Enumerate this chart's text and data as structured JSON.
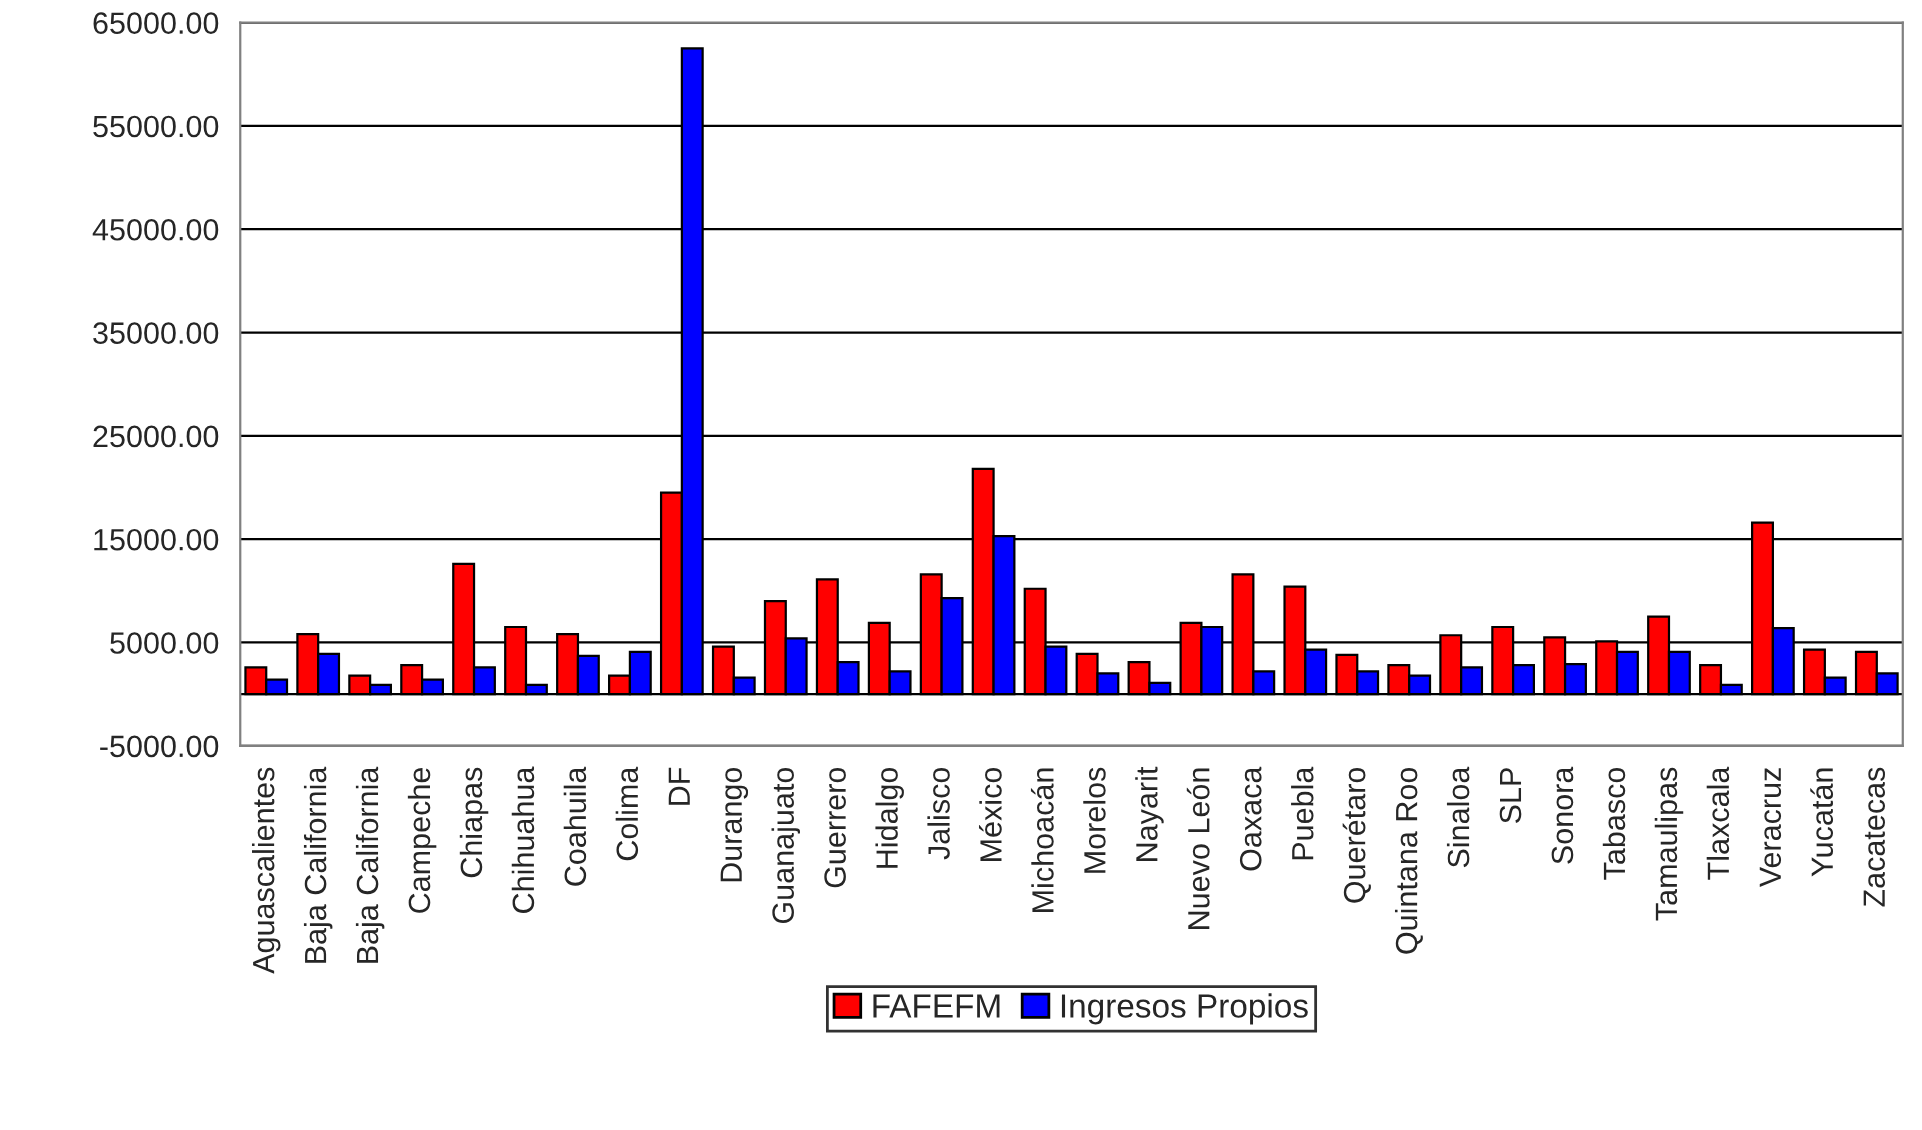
{
  "chart_data": {
    "type": "bar",
    "categories": [
      "Aguascalientes",
      "Baja California",
      "Baja California",
      "Campeche",
      "Chiapas",
      "Chihuahua",
      "Coahuila",
      "Colima",
      "DF",
      "Durango",
      "Guanajuato",
      "Guerrero",
      "Hidalgo",
      "Jalisco",
      "México",
      "Michoacán",
      "Morelos",
      "Nayarit",
      "Nuevo León",
      "Oaxaca",
      "Puebla",
      "Querétaro",
      "Quintana Roo",
      "Sinaloa",
      "SLP",
      "Sonora",
      "Tabasco",
      "Tamaulipas",
      "Tlaxcala",
      "Veracruz",
      "Yucatán",
      "Zacatecas"
    ],
    "series": [
      {
        "name": "FAFEFM",
        "color": "#ff0000",
        "values": [
          2600,
          5800,
          1800,
          2800,
          12600,
          6500,
          5800,
          1800,
          19500,
          4600,
          9000,
          11100,
          6900,
          11600,
          21800,
          10200,
          3900,
          3100,
          6900,
          11600,
          10400,
          3800,
          2800,
          5700,
          6500,
          5500,
          5100,
          7500,
          2800,
          16600,
          4300,
          4100
        ]
      },
      {
        "name": "Ingresos Propios",
        "color": "#0000ff",
        "values": [
          1400,
          3900,
          900,
          1400,
          2600,
          900,
          3700,
          4100,
          62500,
          1600,
          5400,
          3100,
          2200,
          9300,
          15300,
          4600,
          2000,
          1100,
          6500,
          2200,
          4300,
          2200,
          1800,
          2600,
          2800,
          2900,
          4100,
          4100,
          900,
          6400,
          1600,
          2000
        ]
      }
    ],
    "ylim": [
      -5000,
      65000
    ],
    "yticks": [
      {
        "value": -5000,
        "label": "-5000.00"
      },
      {
        "value": 5000,
        "label": "5000.00"
      },
      {
        "value": 15000,
        "label": "15000.00"
      },
      {
        "value": 25000,
        "label": "25000.00"
      },
      {
        "value": 35000,
        "label": "35000.00"
      },
      {
        "value": 45000,
        "label": "45000.00"
      },
      {
        "value": 55000,
        "label": "55000.00"
      },
      {
        "value": 65000,
        "label": "65000.00"
      }
    ],
    "grid": "y",
    "legend": "bottom"
  }
}
